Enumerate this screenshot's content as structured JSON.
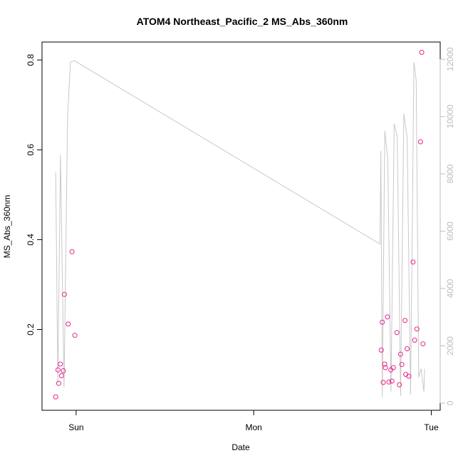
{
  "chart_data": {
    "type": "scatter",
    "title": "ATOM4 Northeast_Pacific_2 MS_Abs_360nm",
    "xlabel": "Date",
    "ylabel": "MS_Abs_360nm",
    "x_tick_labels": [
      "Sun",
      "Mon",
      "Tue"
    ],
    "x_ticks": [
      1,
      2,
      3
    ],
    "xlim": [
      0.808,
      3.05
    ],
    "ylim": [
      0.02,
      0.84
    ],
    "y_ticks": [
      0.2,
      0.4,
      0.6,
      0.8
    ],
    "y_tick_labels": [
      "0.2",
      "0.4",
      "0.6",
      "0.8"
    ],
    "y2lim": [
      -250,
      12600
    ],
    "y2_ticks": [
      0,
      2000,
      4000,
      6000,
      8000,
      10000,
      12000
    ],
    "y2_tick_labels": [
      "0",
      "2000",
      "4000",
      "6000",
      "8000",
      "10000",
      "12000"
    ],
    "grid": false,
    "series": [
      {
        "kind": "points",
        "axis": "left",
        "color": "#e8248a",
        "x": [
          0.885,
          0.898,
          0.902,
          0.911,
          0.918,
          0.928,
          0.934,
          0.955,
          0.977,
          0.993,
          2.718,
          2.724,
          2.729,
          2.737,
          2.741,
          2.753,
          2.761,
          2.772,
          2.778,
          2.786,
          2.806,
          2.82,
          2.827,
          2.834,
          2.852,
          2.856,
          2.864,
          2.873,
          2.897,
          2.906,
          2.919,
          2.939,
          2.946,
          2.953
        ],
        "y": [
          0.05,
          0.11,
          0.08,
          0.123,
          0.097,
          0.108,
          0.278,
          0.212,
          0.373,
          0.187,
          0.154,
          0.216,
          0.082,
          0.123,
          0.115,
          0.228,
          0.083,
          0.11,
          0.085,
          0.115,
          0.193,
          0.077,
          0.145,
          0.122,
          0.22,
          0.1,
          0.157,
          0.096,
          0.35,
          0.176,
          0.201,
          0.618,
          0.817,
          0.168
        ]
      },
      {
        "kind": "line",
        "axis": "right",
        "color": "#c8c8c8",
        "x": [
          0.885,
          0.897,
          0.912,
          0.932,
          0.952,
          0.968,
          0.99,
          2.711,
          2.716,
          2.724,
          2.738,
          2.755,
          2.773,
          2.791,
          2.808,
          2.827,
          2.845,
          2.864,
          2.883,
          2.902,
          2.915,
          2.929,
          2.943,
          2.958,
          2.962
        ],
        "y": [
          8050,
          700,
          8650,
          550,
          10000,
          11900,
          11950,
          5550,
          8800,
          200,
          9500,
          8500,
          400,
          9750,
          9300,
          250,
          10100,
          9250,
          300,
          11900,
          11250,
          900,
          1200,
          400,
          1200
        ]
      }
    ]
  }
}
